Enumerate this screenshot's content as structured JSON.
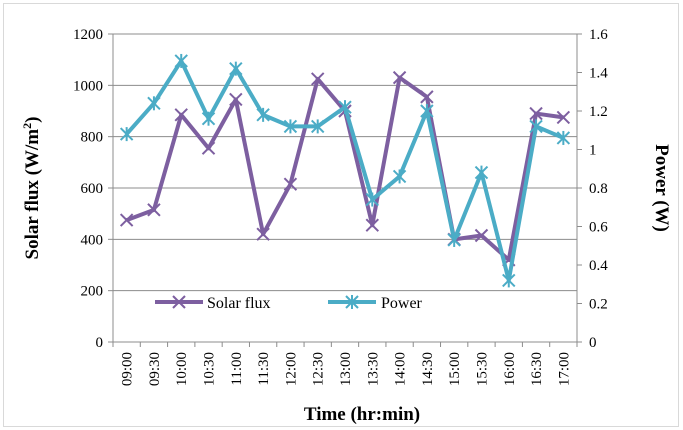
{
  "chart_data": {
    "type": "line",
    "categories": [
      "09:00",
      "09:30",
      "10:00",
      "10:30",
      "11:00",
      "11:30",
      "12:00",
      "12:30",
      "13:00",
      "13:30",
      "14:00",
      "14:30",
      "15:00",
      "15:30",
      "16:00",
      "16:30",
      "17:00"
    ],
    "series": [
      {
        "name": "Solar flux",
        "axis": "left",
        "color": "#7d5fa0",
        "values": [
          475,
          515,
          885,
          755,
          945,
          420,
          615,
          1025,
          900,
          455,
          1030,
          955,
          400,
          415,
          320,
          890,
          875
        ]
      },
      {
        "name": "Power",
        "axis": "right",
        "color": "#4bacc6",
        "values": [
          1.08,
          1.24,
          1.46,
          1.16,
          1.42,
          1.18,
          1.12,
          1.12,
          1.22,
          0.74,
          0.86,
          1.2,
          0.53,
          0.88,
          0.32,
          1.12,
          1.06
        ]
      }
    ],
    "xlabel": "Time (hr:min)",
    "ylabel_left_main": "Solar flux (W/m",
    "ylabel_left_sup": "2",
    "ylabel_left_tail": ")",
    "ylabel_right": "Power (W)",
    "ylim_left": [
      0,
      1200
    ],
    "yticks_left": [
      "0",
      "200",
      "400",
      "600",
      "800",
      "1000",
      "1200"
    ],
    "ylim_right": [
      0,
      1.6
    ],
    "yticks_right": [
      "0",
      "0.2",
      "0.4",
      "0.6",
      "0.8",
      "1",
      "1.2",
      "1.4",
      "1.6"
    ],
    "grid": true,
    "legend_position": "bottom-left inside plot"
  }
}
